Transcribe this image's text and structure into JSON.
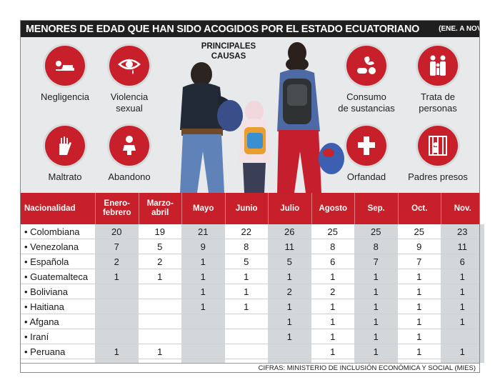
{
  "title": {
    "main": "MENORES DE EDAD QUE HAN SIDO ACOGIDOS POR EL ESTADO ECUATORIANO",
    "sub": "(ENE. A NOV. 2019)"
  },
  "panel": {
    "heading": "PRINCIPALES\nCAUSAS",
    "causes": [
      {
        "label": "Negligencia",
        "icon": "lying-person-icon"
      },
      {
        "label": "Violencia\nsexual",
        "icon": "crying-eye-icon"
      },
      {
        "label": "Maltrato",
        "icon": "raised-hand-icon"
      },
      {
        "label": "Abandono",
        "icon": "baby-icon"
      },
      {
        "label": "Consumo\nde sustancias",
        "icon": "pills-leaf-icon"
      },
      {
        "label": "Trata de\npersonas",
        "icon": "family-icon"
      },
      {
        "label": "Orfandad",
        "icon": "cross-icon"
      },
      {
        "label": "Padres presos",
        "icon": "jail-icon"
      }
    ]
  },
  "colors": {
    "accent": "#c8202a",
    "title_bg": "#1f1f1f",
    "panel_bg": "#e8e9ea",
    "shaded_col": "#d4d7da"
  },
  "chart_data": {
    "type": "table",
    "columns": [
      "Nacionalidad",
      "Enero-\nfebrero",
      "Marzo-\nabril",
      "Mayo",
      "Junio",
      "Julio",
      "Agosto",
      "Sep.",
      "Oct.",
      "Nov."
    ],
    "rows": [
      {
        "name": "• Colombiana",
        "values": [
          20,
          19,
          21,
          22,
          26,
          25,
          25,
          25,
          23
        ]
      },
      {
        "name": "• Venezolana",
        "values": [
          7,
          5,
          9,
          8,
          11,
          8,
          8,
          9,
          11
        ]
      },
      {
        "name": "• Española",
        "values": [
          2,
          2,
          1,
          5,
          5,
          6,
          7,
          7,
          6
        ]
      },
      {
        "name": "• Guatemalteca",
        "values": [
          1,
          1,
          1,
          1,
          1,
          1,
          1,
          1,
          1
        ]
      },
      {
        "name": "• Boliviana",
        "values": [
          null,
          null,
          1,
          1,
          2,
          2,
          1,
          1,
          1
        ]
      },
      {
        "name": "• Haitiana",
        "values": [
          null,
          null,
          1,
          1,
          1,
          1,
          1,
          1,
          1
        ]
      },
      {
        "name": "• Afgana",
        "values": [
          null,
          null,
          null,
          null,
          1,
          1,
          1,
          1,
          1
        ]
      },
      {
        "name": "• Iraní",
        "values": [
          null,
          null,
          null,
          null,
          1,
          1,
          1,
          1,
          null
        ]
      },
      {
        "name": "• Peruana",
        "values": [
          1,
          1,
          null,
          null,
          null,
          1,
          1,
          1,
          1
        ]
      }
    ]
  },
  "footer": "CIFRAS: MINISTERIO DE INCLUSIÓN ECONÓMICA Y SOCIAL (MIES)"
}
